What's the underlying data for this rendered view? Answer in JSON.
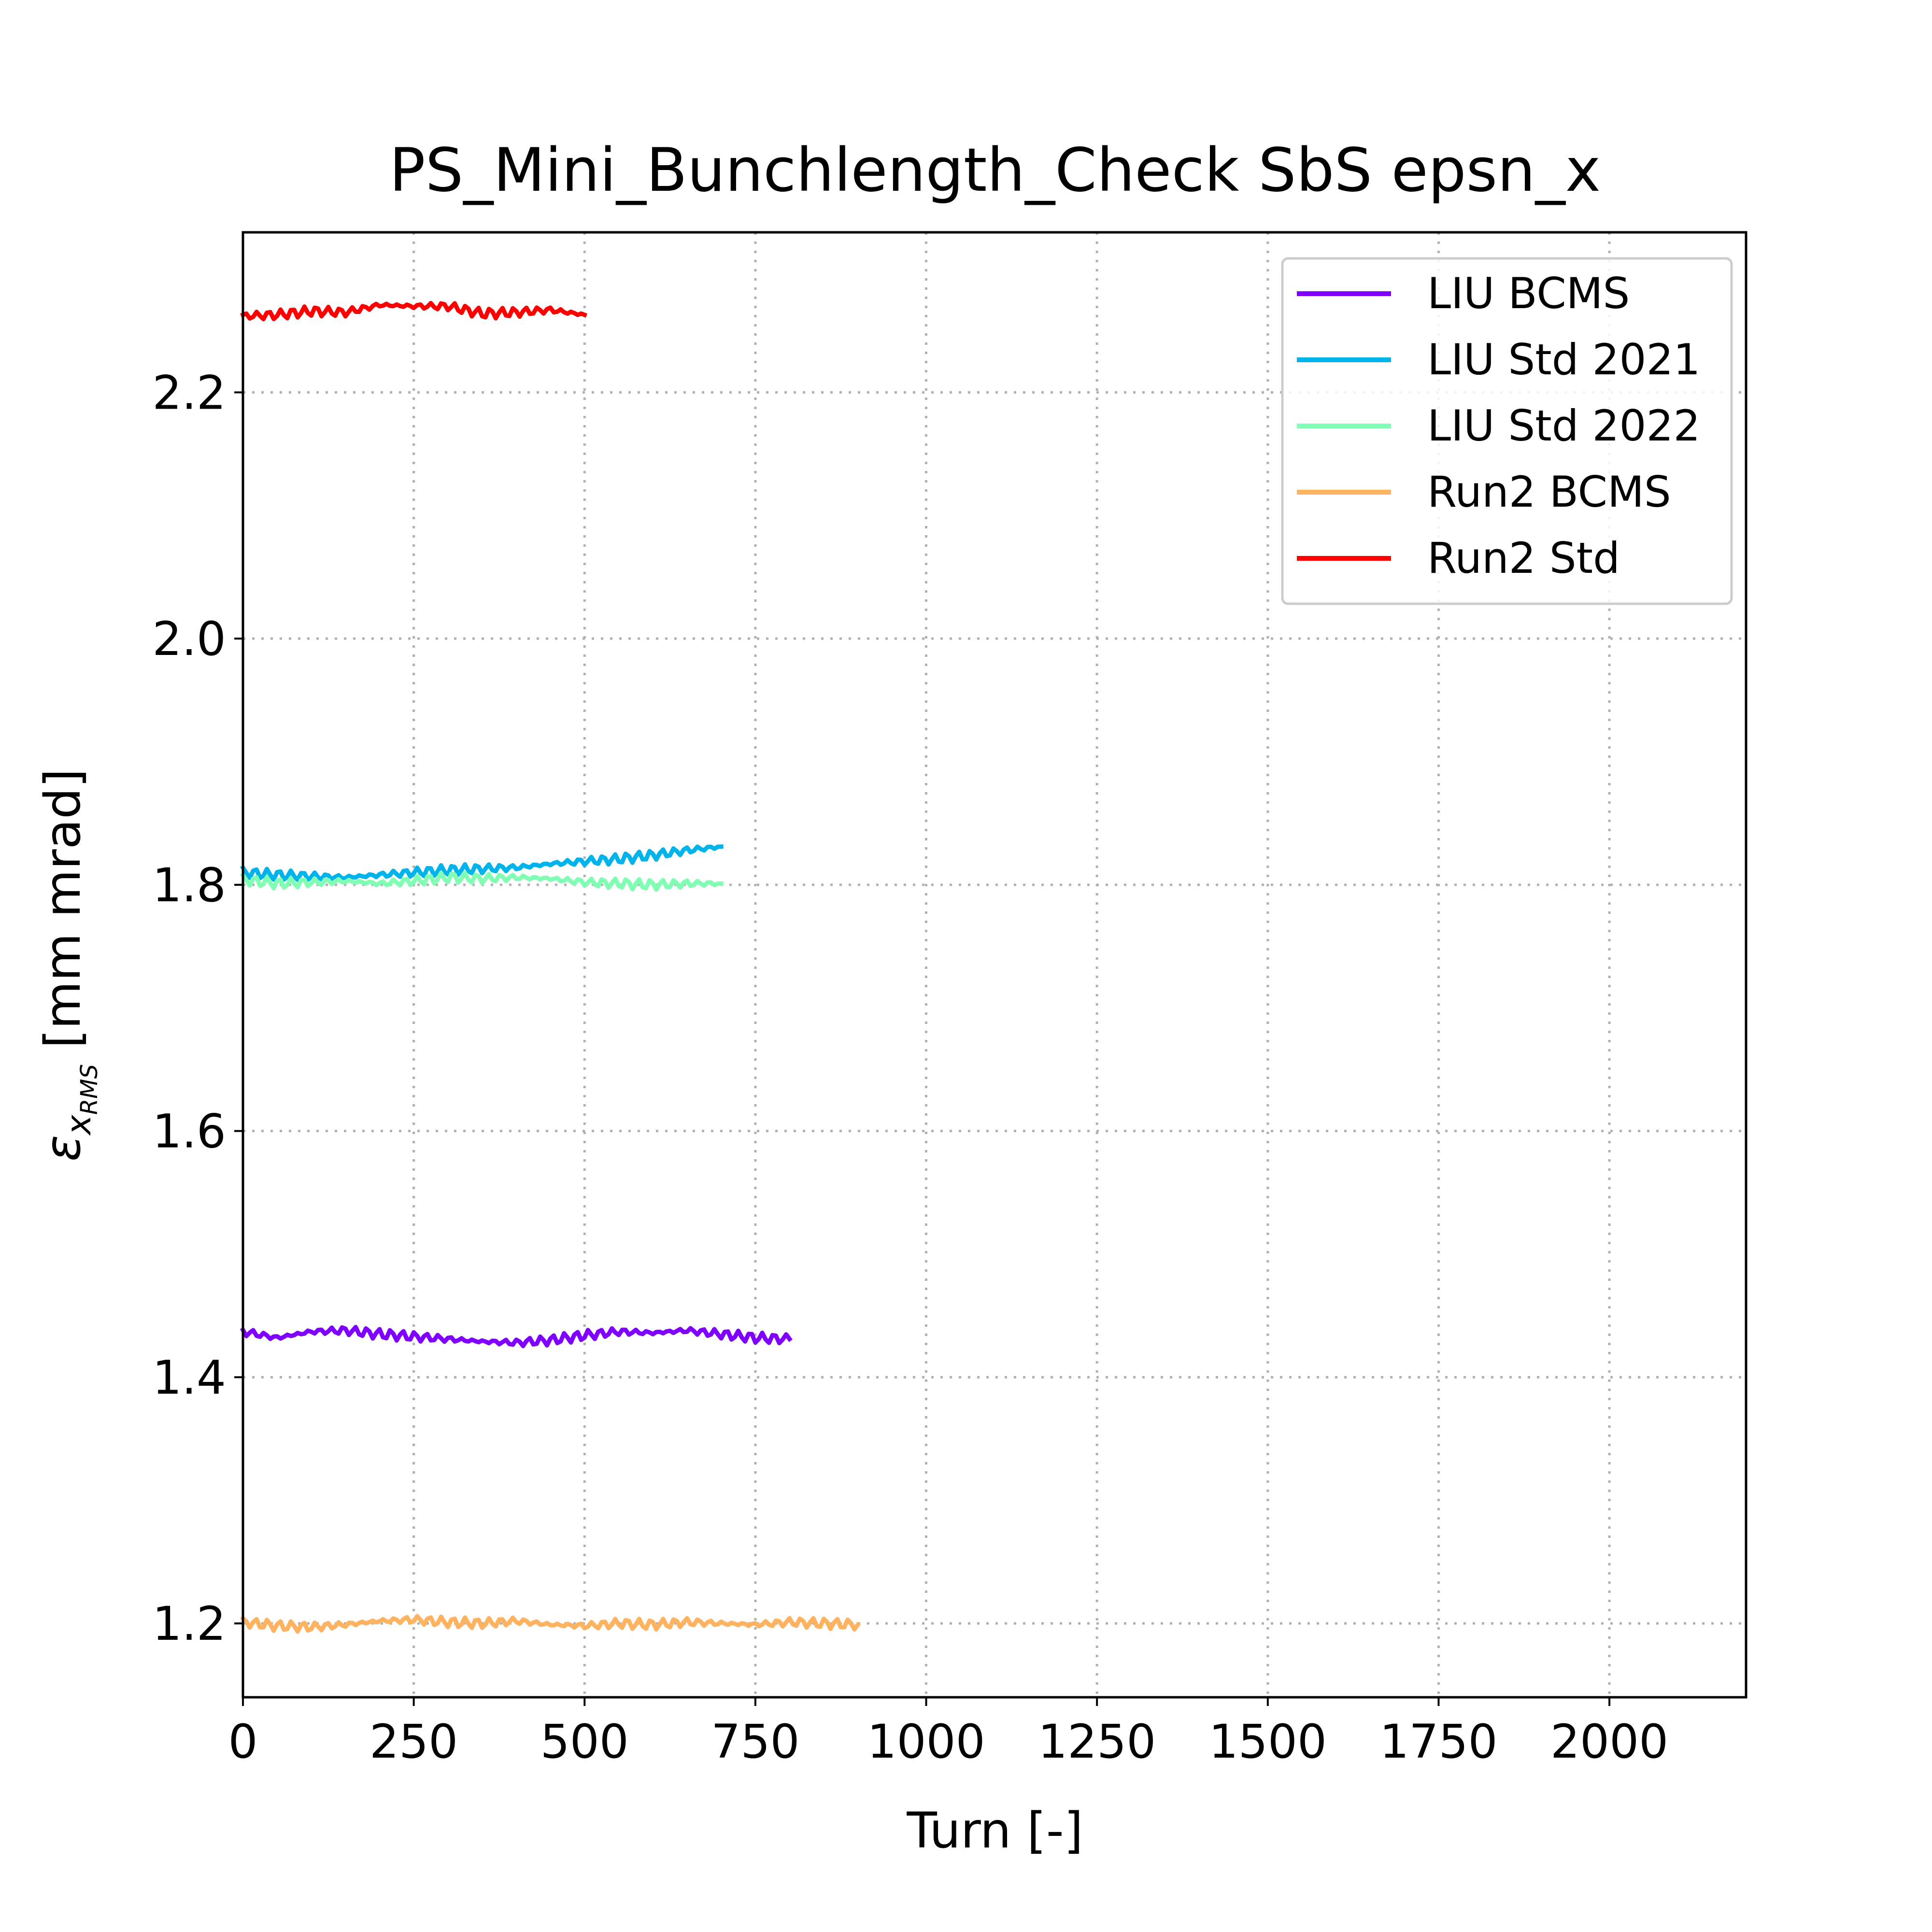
{
  "chart_data": {
    "type": "line",
    "title": "PS_Mini_Bunchlength_Check SbS epsn_x",
    "xlabel": "Turn [-]",
    "ylabel_symbol": "ε",
    "ylabel_sub": "x",
    "ylabel_subsub": "RMS",
    "ylabel_unit": " [mm mrad]",
    "xlim": [
      0,
      2200
    ],
    "ylim": [
      1.14,
      2.33
    ],
    "xticks": [
      0,
      250,
      500,
      750,
      1000,
      1250,
      1500,
      1750,
      2000
    ],
    "yticks": [
      1.2,
      1.4,
      1.6,
      1.8,
      2.0,
      2.2
    ],
    "xtick_labels": [
      "0",
      "250",
      "500",
      "750",
      "1000",
      "1250",
      "1500",
      "1750",
      "2000"
    ],
    "ytick_labels": [
      "1.2",
      "1.4",
      "1.6",
      "1.8",
      "2.0",
      "2.2"
    ],
    "grid": true,
    "legend_position": "top-right",
    "series": [
      {
        "name": "LIU BCMS",
        "color": "#8000ff",
        "x": [
          0,
          50,
          100,
          150,
          200,
          250,
          300,
          350,
          400,
          450,
          500,
          550,
          600,
          650,
          700,
          750,
          800
        ],
        "y": [
          1.437,
          1.432,
          1.437,
          1.438,
          1.435,
          1.433,
          1.431,
          1.429,
          1.428,
          1.43,
          1.434,
          1.437,
          1.436,
          1.438,
          1.435,
          1.432,
          1.431
        ]
      },
      {
        "name": "LIU Std 2021",
        "color": "#00b4eb",
        "x": [
          0,
          50,
          100,
          150,
          200,
          250,
          300,
          350,
          400,
          450,
          500,
          550,
          600,
          650,
          700
        ],
        "y": [
          1.81,
          1.808,
          1.807,
          1.806,
          1.808,
          1.81,
          1.812,
          1.813,
          1.814,
          1.817,
          1.819,
          1.821,
          1.824,
          1.828,
          1.831
        ]
      },
      {
        "name": "LIU Std 2022",
        "color": "#80ffb4",
        "x": [
          0,
          50,
          100,
          150,
          200,
          250,
          300,
          350,
          400,
          450,
          500,
          550,
          600,
          650,
          700
        ],
        "y": [
          1.804,
          1.801,
          1.802,
          1.803,
          1.801,
          1.803,
          1.806,
          1.805,
          1.806,
          1.805,
          1.802,
          1.801,
          1.8,
          1.801,
          1.801
        ]
      },
      {
        "name": "Run2 BCMS",
        "color": "#ffb360",
        "x": [
          0,
          50,
          100,
          150,
          200,
          250,
          300,
          350,
          400,
          450,
          500,
          550,
          600,
          650,
          700,
          750,
          800,
          850,
          900
        ],
        "y": [
          1.201,
          1.198,
          1.197,
          1.199,
          1.202,
          1.203,
          1.201,
          1.2,
          1.202,
          1.199,
          1.198,
          1.2,
          1.199,
          1.201,
          1.2,
          1.199,
          1.201,
          1.2,
          1.199
        ]
      },
      {
        "name": "Run2 Std",
        "color": "#ff0000",
        "x": [
          0,
          50,
          100,
          150,
          200,
          250,
          300,
          350,
          400,
          450,
          500
        ],
        "y": [
          2.262,
          2.263,
          2.266,
          2.265,
          2.271,
          2.27,
          2.27,
          2.264,
          2.265,
          2.267,
          2.263
        ]
      }
    ]
  }
}
